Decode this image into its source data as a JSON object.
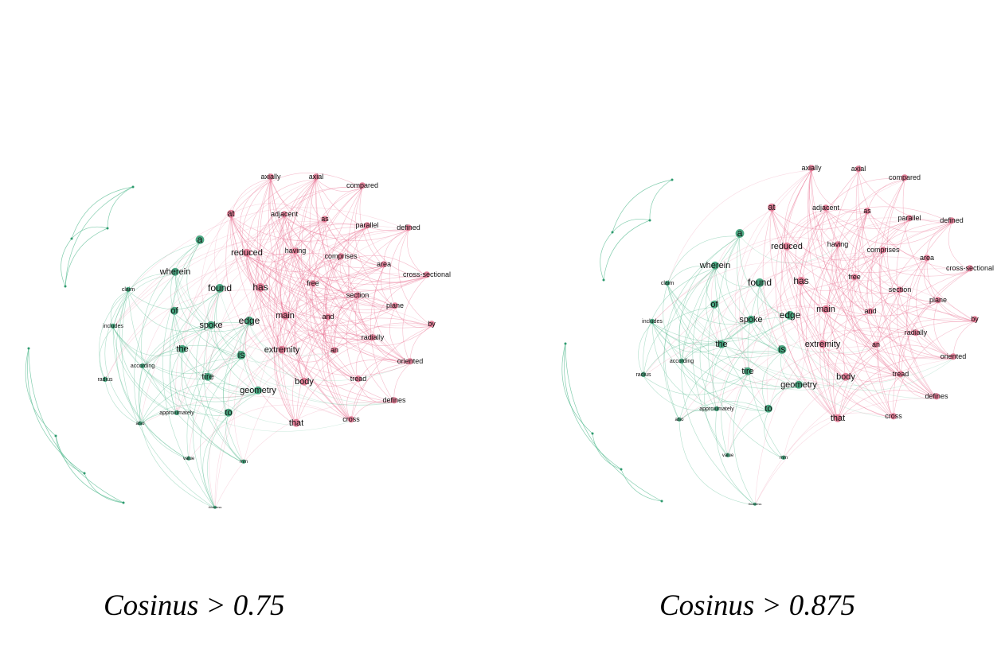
{
  "colors": {
    "community_a": "#2e9a6e",
    "community_b": "#e0708c",
    "edge_a": "#4fb88c",
    "edge_b": "#e86d8f"
  },
  "graphs": [
    {
      "caption": "Cosinus > 0.75",
      "nodes": [
        {
          "label": "axially",
          "c": "b"
        },
        {
          "label": "axial",
          "c": "b"
        },
        {
          "label": "compared",
          "c": "b"
        },
        {
          "label": "at",
          "c": "b"
        },
        {
          "label": "adjacent",
          "c": "b"
        },
        {
          "label": "as",
          "c": "b"
        },
        {
          "label": "parallel",
          "c": "b"
        },
        {
          "label": "defined",
          "c": "b"
        },
        {
          "label": "a",
          "c": "a"
        },
        {
          "label": "reduced",
          "c": "b"
        },
        {
          "label": "having",
          "c": "b"
        },
        {
          "label": "comprises",
          "c": "b"
        },
        {
          "label": "area",
          "c": "b"
        },
        {
          "label": "cross-sectional",
          "c": "b"
        },
        {
          "label": "wherein",
          "c": "a"
        },
        {
          "label": "claim",
          "c": "a"
        },
        {
          "label": "found",
          "c": "a"
        },
        {
          "label": "has",
          "c": "b"
        },
        {
          "label": "free",
          "c": "b"
        },
        {
          "label": "section",
          "c": "b"
        },
        {
          "label": "plane",
          "c": "b"
        },
        {
          "label": "of",
          "c": "a"
        },
        {
          "label": "main",
          "c": "b"
        },
        {
          "label": "and",
          "c": "b"
        },
        {
          "label": "by",
          "c": "b"
        },
        {
          "label": "includes",
          "c": "a"
        },
        {
          "label": "spoke",
          "c": "a"
        },
        {
          "label": "edge",
          "c": "a"
        },
        {
          "label": "radially",
          "c": "b"
        },
        {
          "label": "the",
          "c": "a"
        },
        {
          "label": "is",
          "c": "a"
        },
        {
          "label": "extremity",
          "c": "b"
        },
        {
          "label": "an",
          "c": "b"
        },
        {
          "label": "according",
          "c": "a"
        },
        {
          "label": "oriented",
          "c": "b"
        },
        {
          "label": "radius",
          "c": "a"
        },
        {
          "label": "tire",
          "c": "a"
        },
        {
          "label": "tread",
          "c": "b"
        },
        {
          "label": "body",
          "c": "b"
        },
        {
          "label": "geometry",
          "c": "a"
        },
        {
          "label": "defines",
          "c": "b"
        },
        {
          "label": "approximately",
          "c": "a"
        },
        {
          "label": "to",
          "c": "a"
        },
        {
          "label": "that",
          "c": "b"
        },
        {
          "label": "cross",
          "c": "b"
        },
        {
          "label": "also",
          "c": "a"
        },
        {
          "label": "value",
          "c": "a"
        },
        {
          "label": "mm",
          "c": "a"
        },
        {
          "label": "thickness",
          "c": "a"
        }
      ]
    },
    {
      "caption": "Cosinus > 0.875",
      "nodes": [
        {
          "label": "axially",
          "c": "b"
        },
        {
          "label": "axial",
          "c": "b"
        },
        {
          "label": "compared",
          "c": "b"
        },
        {
          "label": "at",
          "c": "b"
        },
        {
          "label": "adjacent",
          "c": "b"
        },
        {
          "label": "as",
          "c": "b"
        },
        {
          "label": "parallel",
          "c": "b"
        },
        {
          "label": "defined",
          "c": "b"
        },
        {
          "label": "a",
          "c": "a"
        },
        {
          "label": "reduced",
          "c": "b"
        },
        {
          "label": "having",
          "c": "b"
        },
        {
          "label": "comprises",
          "c": "b"
        },
        {
          "label": "area",
          "c": "b"
        },
        {
          "label": "cross-sectional",
          "c": "b"
        },
        {
          "label": "wherein",
          "c": "a"
        },
        {
          "label": "claim",
          "c": "a"
        },
        {
          "label": "found",
          "c": "a"
        },
        {
          "label": "has",
          "c": "b"
        },
        {
          "label": "free",
          "c": "b"
        },
        {
          "label": "section",
          "c": "b"
        },
        {
          "label": "plane",
          "c": "b"
        },
        {
          "label": "of",
          "c": "a"
        },
        {
          "label": "main",
          "c": "b"
        },
        {
          "label": "and",
          "c": "b"
        },
        {
          "label": "by",
          "c": "b"
        },
        {
          "label": "includes",
          "c": "a"
        },
        {
          "label": "spoke",
          "c": "a"
        },
        {
          "label": "edge",
          "c": "a"
        },
        {
          "label": "radially",
          "c": "b"
        },
        {
          "label": "the",
          "c": "a"
        },
        {
          "label": "is",
          "c": "a"
        },
        {
          "label": "extremity",
          "c": "b"
        },
        {
          "label": "an",
          "c": "b"
        },
        {
          "label": "according",
          "c": "a"
        },
        {
          "label": "oriented",
          "c": "b"
        },
        {
          "label": "radius",
          "c": "a"
        },
        {
          "label": "tire",
          "c": "a"
        },
        {
          "label": "tread",
          "c": "b"
        },
        {
          "label": "body",
          "c": "b"
        },
        {
          "label": "geometry",
          "c": "a"
        },
        {
          "label": "defines",
          "c": "b"
        },
        {
          "label": "approximately",
          "c": "a"
        },
        {
          "label": "to",
          "c": "a"
        },
        {
          "label": "that",
          "c": "b"
        },
        {
          "label": "cross",
          "c": "b"
        },
        {
          "label": "also",
          "c": "a"
        },
        {
          "label": "value",
          "c": "a"
        },
        {
          "label": "mm",
          "c": "a"
        },
        {
          "label": "thickness",
          "c": "a"
        }
      ]
    }
  ]
}
